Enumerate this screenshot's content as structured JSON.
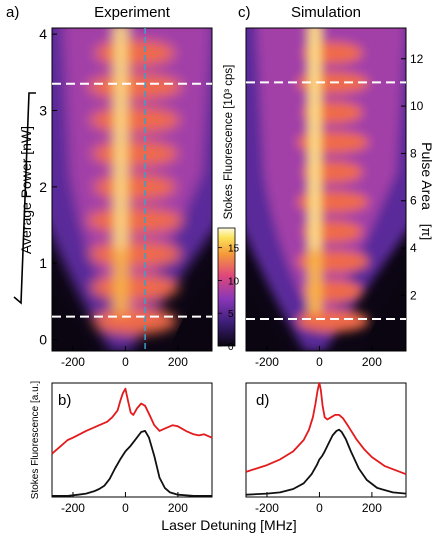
{
  "panels": {
    "a": {
      "letter": "a)",
      "title": "Experiment"
    },
    "c": {
      "letter": "c)",
      "title": "Simulation"
    },
    "b": {
      "letter": "b)"
    },
    "d": {
      "letter": "d)"
    }
  },
  "axes": {
    "left_ylabel": "Average Power [nW]",
    "right_ylabel_main": "Pulse Area",
    "right_ylabel_unit": "[π]",
    "colorbar_label": "Stokes Fluorescence [10³ cps]",
    "bottom_ylabel": "Stokes Fluorescence [a.u.]",
    "xlabel": "Laser Detuning [MHz]"
  },
  "chart_data": [
    {
      "type": "heatmap",
      "panel": "a",
      "title": "Experiment",
      "xlabel": "Laser Detuning [MHz]",
      "ylabel": "√ Average Power [nW]",
      "xlim": [
        -280,
        330
      ],
      "ylim": [
        -0.15,
        4.08
      ],
      "xticks": [
        -200,
        0,
        200
      ],
      "yticks": [
        0,
        1,
        2,
        3,
        4
      ],
      "vertical_line_x": 75,
      "dashed_lines_y": [
        0.3,
        3.35
      ],
      "colorbar": {
        "label": "Stokes Fluorescence [10³ cps]",
        "ticks": [
          0,
          5,
          10,
          15
        ],
        "range": [
          0,
          18
        ]
      }
    },
    {
      "type": "heatmap",
      "panel": "c",
      "title": "Simulation",
      "xlabel": "Laser Detuning [MHz]",
      "ylabel": "Pulse Area [π]",
      "xlim": [
        -280,
        330
      ],
      "ylim": [
        -0.35,
        13.3
      ],
      "xticks": [
        -200,
        0,
        200
      ],
      "yticks": [
        2,
        4,
        6,
        8,
        10,
        12
      ],
      "dashed_lines_y": [
        1.0,
        11.0
      ]
    },
    {
      "type": "line",
      "panel": "b",
      "xlabel": "Laser Detuning [MHz]",
      "ylabel": "Stokes Fluorescence [a.u.]",
      "xlim": [
        -280,
        330
      ],
      "ylim": [
        0,
        1
      ],
      "xticks": [
        -200,
        0,
        200
      ],
      "series": [
        {
          "color": "#e41a1c",
          "x": [
            -280,
            -250,
            -220,
            -200,
            -150,
            -100,
            -70,
            -50,
            -30,
            -20,
            -10,
            0,
            10,
            20,
            30,
            45,
            60,
            75,
            90,
            110,
            130,
            150,
            180,
            200,
            230,
            260,
            280,
            300,
            330
          ],
          "y": [
            0.38,
            0.44,
            0.5,
            0.52,
            0.58,
            0.63,
            0.66,
            0.7,
            0.76,
            0.84,
            0.91,
            0.95,
            0.84,
            0.74,
            0.72,
            0.78,
            0.82,
            0.8,
            0.73,
            0.63,
            0.58,
            0.6,
            0.63,
            0.62,
            0.58,
            0.55,
            0.54,
            0.55,
            0.52
          ]
        },
        {
          "color": "#111111",
          "x": [
            -280,
            -220,
            -180,
            -150,
            -120,
            -100,
            -80,
            -60,
            -40,
            -20,
            0,
            20,
            40,
            60,
            75,
            90,
            110,
            130,
            150,
            170,
            200,
            260,
            330
          ],
          "y": [
            0.01,
            0.01,
            0.02,
            0.03,
            0.05,
            0.07,
            0.1,
            0.16,
            0.25,
            0.33,
            0.4,
            0.45,
            0.51,
            0.57,
            0.58,
            0.52,
            0.36,
            0.17,
            0.08,
            0.04,
            0.02,
            0.01,
            0.01
          ]
        }
      ]
    },
    {
      "type": "line",
      "panel": "d",
      "xlabel": "Laser Detuning [MHz]",
      "xlim": [
        -280,
        330
      ],
      "ylim": [
        0,
        1
      ],
      "xticks": [
        -200,
        0,
        200
      ],
      "series": [
        {
          "color": "#e41a1c",
          "x": [
            -280,
            -200,
            -150,
            -100,
            -60,
            -40,
            -25,
            -15,
            -8,
            -3,
            0,
            5,
            12,
            20,
            30,
            45,
            60,
            75,
            90,
            110,
            140,
            170,
            200,
            250,
            330
          ],
          "y": [
            0.22,
            0.28,
            0.33,
            0.4,
            0.5,
            0.59,
            0.7,
            0.82,
            0.92,
            0.98,
            1.0,
            0.94,
            0.8,
            0.7,
            0.68,
            0.7,
            0.72,
            0.72,
            0.69,
            0.62,
            0.51,
            0.42,
            0.35,
            0.27,
            0.2
          ]
        },
        {
          "color": "#111111",
          "x": [
            -280,
            -200,
            -150,
            -100,
            -60,
            -30,
            -10,
            0,
            10,
            20,
            35,
            50,
            65,
            75,
            85,
            100,
            120,
            150,
            180,
            220,
            280,
            330
          ],
          "y": [
            0.02,
            0.03,
            0.04,
            0.07,
            0.12,
            0.2,
            0.28,
            0.33,
            0.36,
            0.4,
            0.47,
            0.54,
            0.58,
            0.59,
            0.57,
            0.51,
            0.4,
            0.25,
            0.15,
            0.08,
            0.04,
            0.03
          ]
        }
      ]
    }
  ],
  "colors": {
    "red": "#e41a1c",
    "black": "#111111",
    "dash": "#ffffff",
    "vline": "#3aa0c8"
  }
}
